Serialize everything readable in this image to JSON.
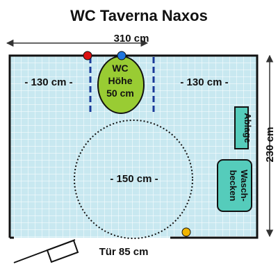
{
  "title": "WC Taverna Naxos",
  "dimensions": {
    "width": "310 cm",
    "height": "230 cm",
    "left_clearance": "- 130 cm -",
    "right_clearance": "- 130 cm -",
    "turning_circle": "- 150 cm -",
    "door": "Tür 85 cm"
  },
  "toilet": {
    "line1": "WC",
    "line2": "Höhe",
    "line3": "50 cm"
  },
  "shelf_label": "Ablage",
  "sink": {
    "line1": "Wasch-",
    "line2": "becken"
  },
  "colors": {
    "floor": "#c8e8f0",
    "tile_grid": "#ffffff",
    "wall": "#111111",
    "toilet": "#99cc33",
    "fixtures": "#55ccbb",
    "grab_bar": "#1a3a99",
    "red_marker": "#dd1111",
    "blue_marker": "#2277dd",
    "yellow_marker": "#f0b400",
    "arrow": "#333333"
  }
}
